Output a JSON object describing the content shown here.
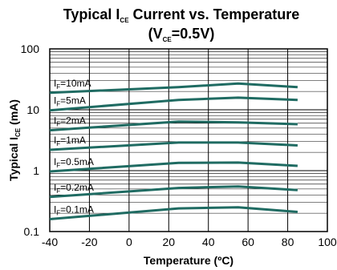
{
  "chart_data": {
    "type": "line",
    "title": {
      "prefix": "Typical I",
      "sub": "CE",
      "suffix": " Current vs. Temperature"
    },
    "subtitle": {
      "prefix": "(V",
      "sub": "CE",
      "suffix": "=0.5V)"
    },
    "xlabel": "Temperature (ºC)",
    "ylabel": {
      "prefix": "Typical I",
      "sub": "CE",
      "suffix": " (mA)"
    },
    "xlim": [
      -40,
      100
    ],
    "ylim": [
      0.1,
      100
    ],
    "yscale": "log",
    "x_ticks": [
      "-40",
      "-20",
      "0",
      "20",
      "40",
      "60",
      "80",
      "100"
    ],
    "y_ticks": [
      "100",
      "10",
      "1",
      "0.1"
    ],
    "grid": true,
    "series_color": "#1f6b62",
    "series": [
      {
        "label_sub": "F",
        "label_value": "=10mA",
        "x": [
          -40,
          25,
          55,
          85
        ],
        "y": [
          19,
          23.5,
          27,
          23.5
        ]
      },
      {
        "label_sub": "F",
        "label_value": "=5mA",
        "x": [
          -40,
          25,
          55,
          85
        ],
        "y": [
          9.8,
          14.5,
          15.8,
          14.5
        ]
      },
      {
        "label_sub": "F",
        "label_value": "=2mA",
        "x": [
          -40,
          25,
          55,
          85
        ],
        "y": [
          4.6,
          6.4,
          6.2,
          5.8
        ]
      },
      {
        "label_sub": "F",
        "label_value": "=1mA",
        "x": [
          -40,
          25,
          55,
          85
        ],
        "y": [
          2.2,
          2.9,
          2.9,
          2.6
        ]
      },
      {
        "label_sub": "F",
        "label_value": "=0.5mA",
        "x": [
          -40,
          25,
          55,
          85
        ],
        "y": [
          0.97,
          1.34,
          1.36,
          1.2
        ]
      },
      {
        "label_sub": "F",
        "label_value": "=0.2mA",
        "x": [
          -40,
          25,
          55,
          85
        ],
        "y": [
          0.37,
          0.52,
          0.55,
          0.48
        ]
      },
      {
        "label_sub": "F",
        "label_value": "=0.1mA",
        "x": [
          -40,
          25,
          55,
          85
        ],
        "y": [
          0.16,
          0.24,
          0.25,
          0.21
        ]
      }
    ]
  }
}
